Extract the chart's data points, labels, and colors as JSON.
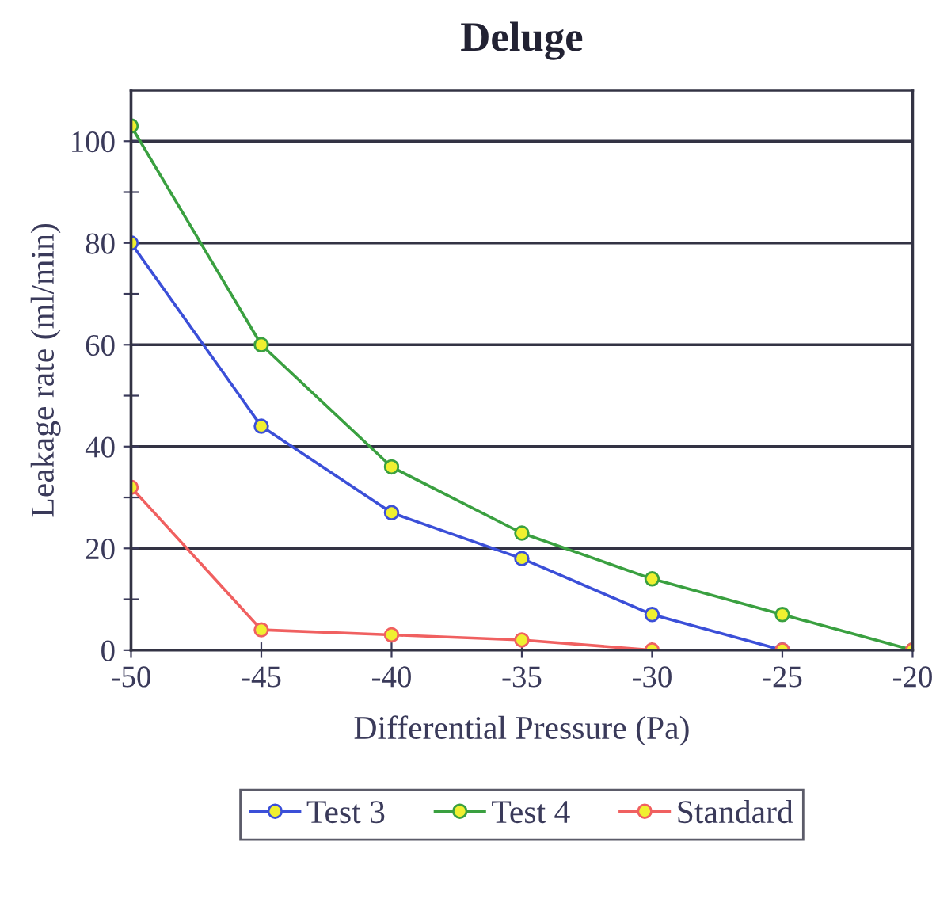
{
  "chart_data": {
    "type": "line",
    "title": "Deluge",
    "xlabel": "Differential Pressure (Pa)",
    "ylabel": "Leakage rate (ml/min)",
    "x": [
      -50,
      -45,
      -40,
      -35,
      -30,
      -25,
      -20
    ],
    "series": [
      {
        "name": "Test 3",
        "color": "#3b4fd8",
        "values": [
          80,
          44,
          27,
          18,
          7,
          0,
          null
        ]
      },
      {
        "name": "Test 4",
        "color": "#3aa040",
        "values": [
          103,
          60,
          36,
          23,
          14,
          7,
          0
        ]
      },
      {
        "name": "Standard",
        "color": "#f06060",
        "values": [
          32,
          4,
          3,
          2,
          0,
          0,
          0
        ]
      }
    ],
    "xlim": [
      -50,
      -20
    ],
    "xticks": [
      -50,
      -45,
      -40,
      -35,
      -30,
      -25,
      -20
    ],
    "ylim": [
      0,
      110
    ],
    "yticks": [
      0,
      {
        "value": 10,
        "label": null
      },
      20,
      {
        "value": 30,
        "label": null
      },
      40,
      {
        "value": 50,
        "label": null
      },
      60,
      {
        "value": 70,
        "label": null
      },
      80,
      {
        "value": 90,
        "label": null
      },
      100
    ],
    "grid": "y",
    "legend": "bottom",
    "marker": "circle",
    "line_style": "solid"
  }
}
